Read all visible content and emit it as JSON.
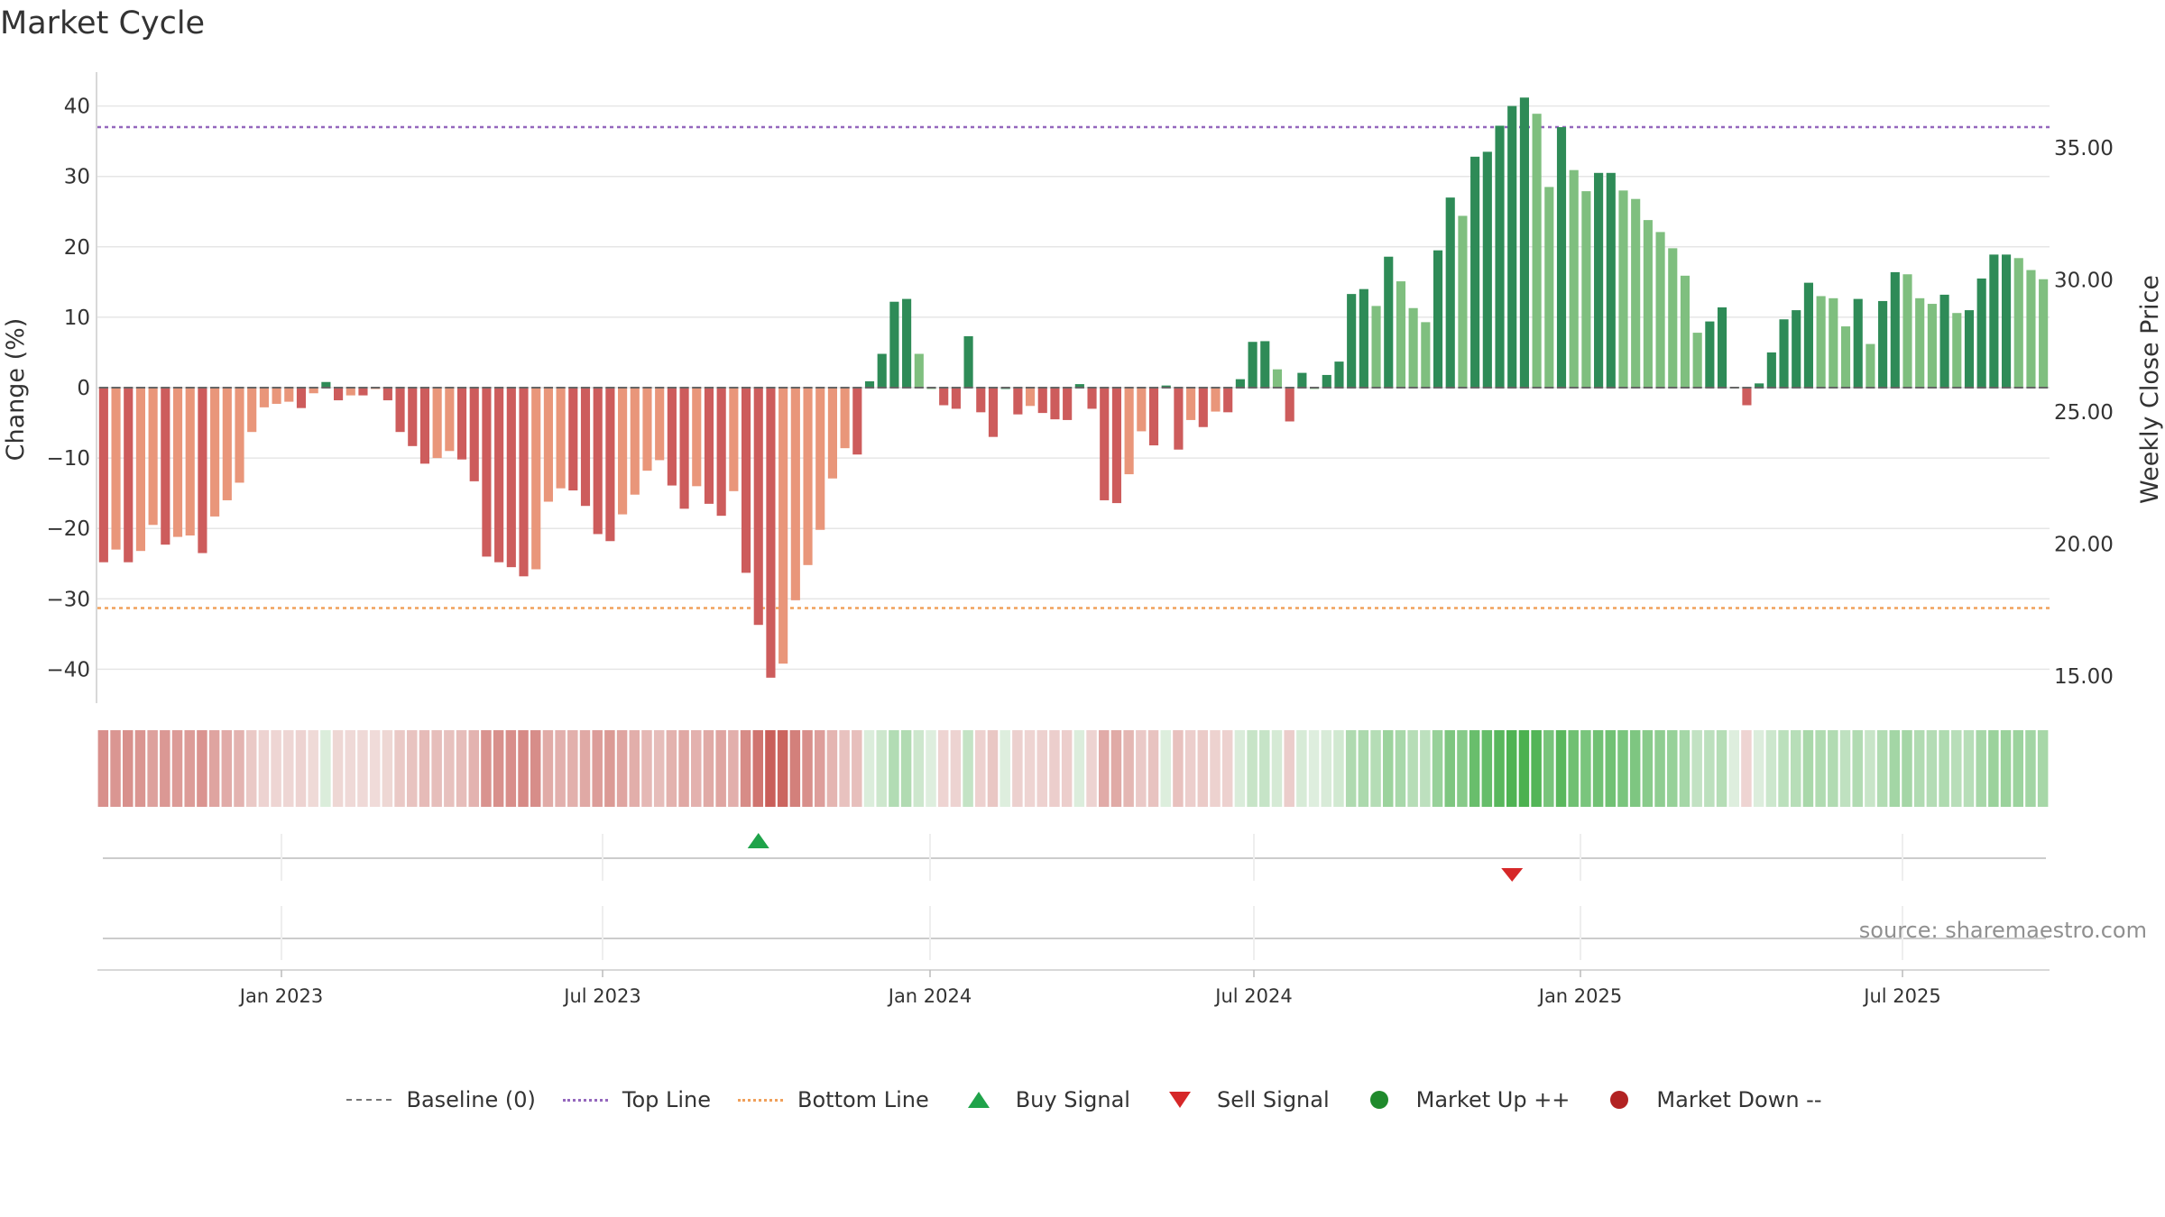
{
  "title": "Market Cycle",
  "source": "source: sharemaestro.com",
  "chart_data": {
    "type": "bar",
    "y_left": {
      "label": "Change (%)",
      "ylim": [
        -45,
        45
      ],
      "ticks": [
        40,
        30,
        20,
        10,
        0,
        -10,
        -20,
        -30,
        -40
      ],
      "tick_labels": [
        "40",
        "30",
        "20",
        "10",
        "0",
        "−10",
        "−20",
        "−30",
        "−40"
      ]
    },
    "y_right": {
      "label": "Weekly Close Price",
      "ticks": [
        35,
        30,
        25,
        20,
        15
      ],
      "tick_labels": [
        "35.00",
        "30.00",
        "25.00",
        "20.00",
        "15.00"
      ]
    },
    "x_ticks": [
      "Jan 2023",
      "Jul 2023",
      "Jan 2024",
      "Jul 2024",
      "Jan 2025",
      "Jul 2025"
    ],
    "top_line": 37,
    "bottom_line": -31.3,
    "values": [
      -24.8,
      -23,
      -24.8,
      -23.2,
      -19.5,
      -22.3,
      -21.2,
      -21,
      -23.5,
      -18.3,
      -16,
      -13.5,
      -6.3,
      -2.8,
      -2.3,
      -2,
      -2.9,
      -0.8,
      0.8,
      -1.8,
      -1.1,
      -1.1,
      -0.2,
      -1.8,
      -6.3,
      -8.3,
      -10.8,
      -10,
      -9,
      -10.2,
      -13.3,
      -24,
      -24.8,
      -25.5,
      -26.8,
      -25.8,
      -16.2,
      -14.3,
      -14.6,
      -16.8,
      -20.8,
      -21.8,
      -18,
      -15.2,
      -11.8,
      -10.3,
      -13.9,
      -17.2,
      -14,
      -16.5,
      -18.2,
      -14.7,
      -26.3,
      -33.7,
      -41.2,
      -39.2,
      -30.2,
      -25.2,
      -20.2,
      -12.9,
      -8.6,
      -9.5,
      0.9,
      4.8,
      12.2,
      12.6,
      4.8,
      0,
      -2.5,
      -3,
      7.3,
      -3.5,
      -7,
      0,
      -3.8,
      -2.6,
      -3.6,
      -4.5,
      -4.6,
      0.5,
      -3,
      -16,
      -16.4,
      -12.3,
      -6.2,
      -8.2,
      0.3,
      -8.8,
      -4.6,
      -5.6,
      -3.4,
      -3.5,
      1.2,
      6.5,
      6.6,
      2.6,
      -4.8,
      2.1,
      0,
      1.8,
      3.7,
      13.3,
      14,
      11.6,
      18.6,
      15.1,
      11.3,
      9.3,
      19.5,
      27,
      24.4,
      32.8,
      33.5,
      37.2,
      40,
      41.2,
      38.9,
      28.5,
      37,
      30.9,
      27.9,
      30.5,
      30.5,
      28,
      26.8,
      23.8,
      22.1,
      19.8,
      15.9,
      7.8,
      9.4,
      11.4,
      0.1,
      -2.5,
      0.6,
      5,
      9.7,
      11,
      14.9,
      13,
      12.7,
      8.7,
      12.6,
      6.2,
      12.3,
      16.4,
      16.1,
      12.7,
      11.9,
      13.2,
      10.6,
      11,
      15.5,
      18.9,
      18.9,
      18.4,
      16.7,
      15.4
    ],
    "buy_signal": {
      "date": "Oct 2023",
      "bar_index": 53
    },
    "sell_signal": {
      "date": "Dec 2024",
      "bar_index": 114
    },
    "colors": {
      "down_strong": "#cd5c5c",
      "down_light": "#e9967a",
      "up_strong": "#2e8b57",
      "up_light": "#7fbf7f",
      "top_line": "#9467bd",
      "bottom_line": "#f0a05a",
      "grid": "#e6e6e6"
    }
  },
  "legend": [
    {
      "icon": "dash-line",
      "label": "Baseline (0)",
      "color": "#777777"
    },
    {
      "icon": "dotted-line",
      "label": "Top Line",
      "color": "#9467bd"
    },
    {
      "icon": "dotted-line",
      "label": "Bottom Line",
      "color": "#f0a05a"
    },
    {
      "icon": "triangle-up",
      "label": "Buy Signal",
      "color": "#1fa34a"
    },
    {
      "icon": "triangle-down",
      "label": "Sell Signal",
      "color": "#d62728"
    },
    {
      "icon": "circle",
      "label": "Market Up ++",
      "color": "#1f8a2c"
    },
    {
      "icon": "circle",
      "label": "Market Down --",
      "color": "#b22222"
    }
  ]
}
